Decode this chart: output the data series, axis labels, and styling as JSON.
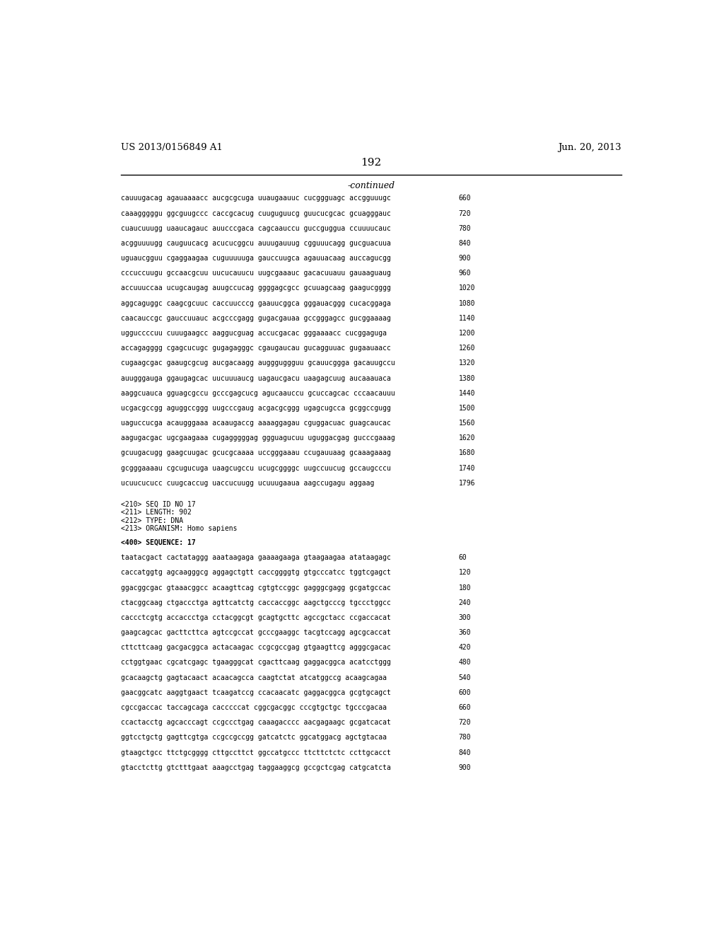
{
  "header_left": "US 2013/0156849 A1",
  "header_right": "Jun. 20, 2013",
  "page_number": "192",
  "continued_label": "-continued",
  "background_color": "#ffffff",
  "text_color": "#000000",
  "header_font_size": 9.5,
  "page_num_font_size": 11,
  "continued_font_size": 9,
  "mono_font_size": 7.0,
  "sequence_lines_top": [
    [
      "cauuugacag agauaaaacc aucgcgcuga uuaugaauuc cucggguagc accgguuugc",
      "660"
    ],
    [
      "caaagggggu ggcguugccc caccgcacug cuuguguucg guucucgcac gcuagggauc",
      "720"
    ],
    [
      "cuaucuuugg uaaucagauc auucccgaca cagcaauccu guccguggua ccuuuucauc",
      "780"
    ],
    [
      "acgguuuugg cauguucacg acucucggcu auuugauuug cgguuucagg gucguacuua",
      "840"
    ],
    [
      "uguaucgguu cgaggaagaa cuguuuuuga gauccuugca agauuacaag auccagucgg",
      "900"
    ],
    [
      "cccuccuugu gccaacgcuu uucucauucu uugcgaaauc gacacuuauu gauaaguaug",
      "960"
    ],
    [
      "accuuuccaa ucugcaugag auugccucag ggggagcgcc gcuuagcaag gaagucgggg",
      "1020"
    ],
    [
      "aggcaguggc caagcgcuuc caccuucccg gaauucggca gggauacggg cucacggaga",
      "1080"
    ],
    [
      "caacauccgc gauccuuauc acgcccgagg gugacgauaa gccgggagcc gucggaaaag",
      "1140"
    ],
    [
      "ugguccccuu cuuugaagcc aaggucguag accucgacac gggaaaacc cucggaguga",
      "1200"
    ],
    [
      "accagagggg cgagcucugc gugagagggc cgaugaucau gucagguuac gugaauaacc",
      "1260"
    ],
    [
      "cugaagcgac gaaugcgcug aucgacaagg auggguggguu gcauucggga gacauugccu",
      "1320"
    ],
    [
      "auugggauga ggaugagcac uucuuuaucg uagaucgacu uaagagcuug aucaaauaca",
      "1380"
    ],
    [
      "aaggcuauca gguagcgccu gcccgagcucg agucaauccu gcuccagcac cccaacauuu",
      "1440"
    ],
    [
      "ucgacgccgg aguggccggg uugcccgaug acgacgcggg ugagcugcca gcggccgugg",
      "1500"
    ],
    [
      "uaguccucga acaugggaaa acaaugaccg aaaaggagau cguggacuac guagcaucac",
      "1560"
    ],
    [
      "aagugacgac ugcgaagaaa cugagggggag ggguagucuu uguggacgag gucccgaaag",
      "1620"
    ],
    [
      "gcuugacugg gaagcuugac gcucgcaaaa uccgggaaau ccugauuaag gcaaagaaag",
      "1680"
    ],
    [
      "gcgggaaaau cgcugucuga uaagcugccu ucugcggggc uugccuucug gccaugcccu",
      "1740"
    ],
    [
      "ucuucucucc cuugcaccug uaccucuugg ucuuugaaua aagccugagu aggaag",
      "1796"
    ]
  ],
  "metadata_lines": [
    "<210> SEQ ID NO 17",
    "<211> LENGTH: 902",
    "<212> TYPE: DNA",
    "<213> ORGANISM: Homo sapiens"
  ],
  "sequence_label": "<400> SEQUENCE: 17",
  "sequence_lines_bottom": [
    [
      "taatacgact cactataggg aaataagaga gaaaagaaga gtaagaagaa atataagagc",
      "60"
    ],
    [
      "caccatggtg agcaagggcg aggagctgtt caccggggtg gtgcccatcc tggtcgagct",
      "120"
    ],
    [
      "ggacggcgac gtaaacggcc acaagttcag cgtgtccggc gagggcgagg gcgatgccac",
      "180"
    ],
    [
      "ctacggcaag ctgaccctga agttcatctg caccaccggc aagctgcccg tgccctggcc",
      "240"
    ],
    [
      "caccctcgtg accaccctga cctacggcgt gcagtgcttc agccgctacc ccgaccacat",
      "300"
    ],
    [
      "gaagcagcac gacttcttca agtccgccat gcccgaaggc tacgtccagg agcgcaccat",
      "360"
    ],
    [
      "cttcttcaag gacgacggca actacaagac ccgcgccgag gtgaagttcg agggcgacac",
      "420"
    ],
    [
      "cctggtgaac cgcatcgagc tgaagggcat cgacttcaag gaggacggca acatcctggg",
      "480"
    ],
    [
      "gcacaagctg gagtacaact acaacagcca caagtctat atcatggccg acaagcagaa",
      "540"
    ],
    [
      "gaacggcatc aaggtgaact tcaagatccg ccacaacatc gaggacggca gcgtgcagct",
      "600"
    ],
    [
      "cgccgaccac taccagcaga cacccccat cggcgacggc cccgtgctgc tgcccgacaa",
      "660"
    ],
    [
      "ccactacctg agcacccagt ccgccctgag caaagacccc aacgagaagc gcgatcacat",
      "720"
    ],
    [
      "ggtcctgctg gagttcgtga ccgccgccgg gatcatctc ggcatggacg agctgtacaa",
      "780"
    ],
    [
      "gtaagctgcc ttctgcgggg cttgccttct ggccatgccc ttcttctctc ccttgcacct",
      "840"
    ],
    [
      "gtacctcttg gtctttgaat aaagcctgag taggaaggcg gccgctcgag catgcatcta",
      "900"
    ]
  ]
}
